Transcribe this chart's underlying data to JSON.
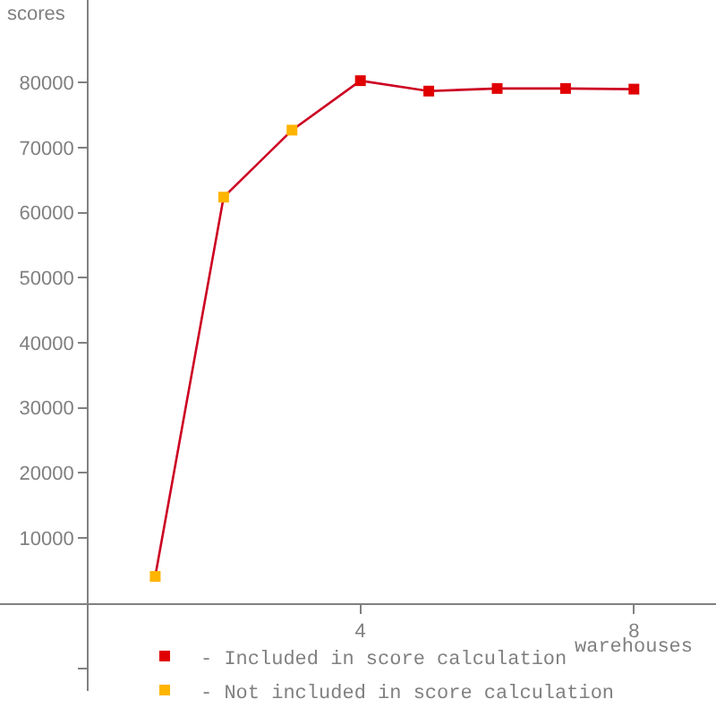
{
  "chart_data": {
    "type": "line",
    "xlabel": "warehouses",
    "ylabel": "scores",
    "xlim": [
      -1.27,
      9.2
    ],
    "ylim": [
      -13500,
      92700
    ],
    "xticks": [
      4,
      8
    ],
    "yticks": [
      {
        "value": -10000,
        "label": null
      },
      10000,
      20000,
      30000,
      40000,
      50000,
      60000,
      70000,
      80000
    ],
    "legend": "bottom",
    "series": [
      {
        "color": "#cc0022",
        "marker": "none",
        "line_style": "solid",
        "x": [
          1,
          2,
          3,
          4,
          5,
          6,
          7,
          8
        ],
        "values": [
          4100,
          62400,
          72700,
          80300,
          78700,
          79100,
          79100,
          79000
        ]
      },
      {
        "type": "scatter",
        "name": "- Included in score calculation",
        "color": "#e00000",
        "marker": "square",
        "x": [
          4,
          5,
          6,
          7,
          8
        ],
        "values": [
          80300,
          78700,
          79100,
          79100,
          79000
        ]
      },
      {
        "type": "scatter",
        "name": "- Not included in score calculation",
        "color": "#ffb400",
        "marker": "square",
        "x": [
          1,
          2,
          3
        ],
        "values": [
          4100,
          62400,
          72700
        ]
      }
    ]
  }
}
